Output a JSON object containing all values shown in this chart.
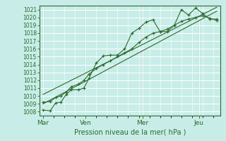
{
  "bg_color": "#c8ede8",
  "grid_color": "#b8ddd8",
  "line_color": "#2d6a2d",
  "marker_color": "#2d6a2d",
  "ylabel_ticks": [
    1008,
    1009,
    1010,
    1011,
    1012,
    1013,
    1014,
    1015,
    1016,
    1017,
    1018,
    1019,
    1020,
    1021
  ],
  "xlabel": "Pression niveau de la mer( hPa )",
  "xtick_labels": [
    "Mar",
    "Ven",
    "Mer",
    "Jeu"
  ],
  "xtick_positions": [
    0,
    24,
    56,
    88
  ],
  "series1_x": [
    0,
    4,
    7,
    10,
    13,
    16,
    20,
    23,
    26,
    30,
    34,
    38,
    42,
    46,
    50,
    54,
    58,
    62,
    66,
    70,
    74,
    78,
    82,
    86,
    90,
    94,
    98
  ],
  "series1_y": [
    1008.2,
    1008.1,
    1009.1,
    1009.2,
    1010.2,
    1010.8,
    1010.8,
    1011.0,
    1012.3,
    1014.2,
    1015.1,
    1015.2,
    1015.2,
    1016.0,
    1018.0,
    1018.6,
    1019.4,
    1019.7,
    1018.2,
    1018.2,
    1019.0,
    1021.0,
    1020.3,
    1021.2,
    1020.5,
    1019.8,
    1019.8
  ],
  "series2_x": [
    0,
    4,
    7,
    10,
    13,
    16,
    20,
    23,
    26,
    30,
    34,
    38,
    42,
    46,
    50,
    54,
    58,
    62,
    66,
    70,
    74,
    78,
    82,
    86,
    90,
    94,
    98
  ],
  "series2_y": [
    1009.2,
    1009.3,
    1009.8,
    1010.0,
    1010.5,
    1011.2,
    1011.5,
    1012.0,
    1012.8,
    1013.5,
    1014.0,
    1014.5,
    1015.0,
    1015.5,
    1016.0,
    1016.8,
    1017.5,
    1018.0,
    1018.2,
    1018.5,
    1019.0,
    1019.5,
    1019.8,
    1020.0,
    1020.2,
    1019.9,
    1019.6
  ],
  "trend1_x": [
    0,
    98
  ],
  "trend1_y": [
    1009.0,
    1020.8
  ],
  "trend2_x": [
    0,
    98
  ],
  "trend2_y": [
    1010.2,
    1021.3
  ],
  "ylim": [
    1007.5,
    1021.5
  ],
  "xlim": [
    -2,
    100
  ]
}
